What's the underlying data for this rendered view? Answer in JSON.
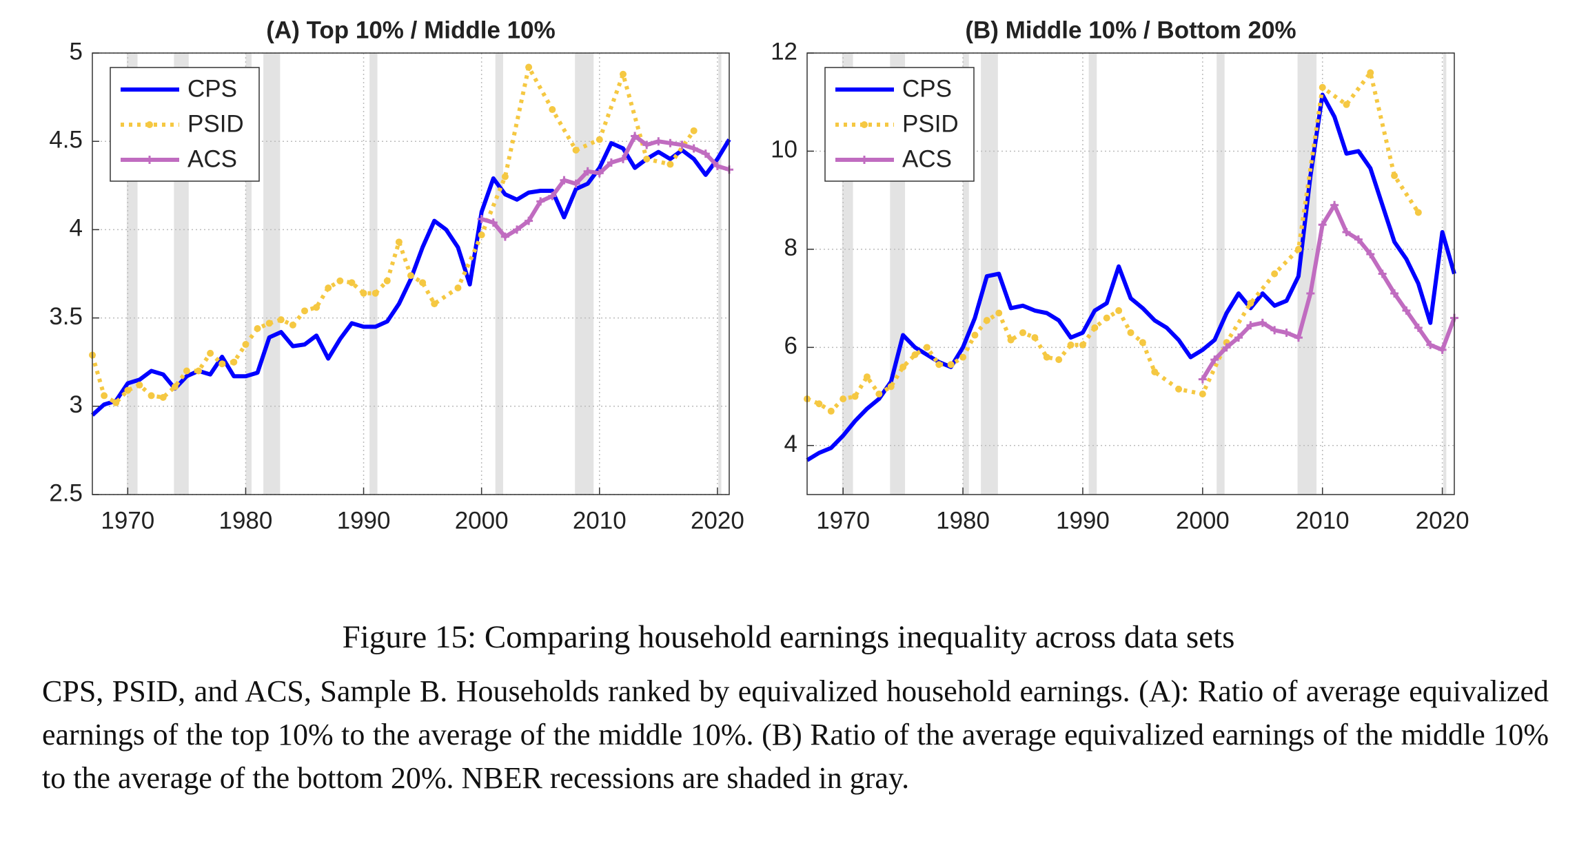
{
  "chart_data": [
    {
      "type": "line",
      "title": "(A) Top 10% / Middle 10%",
      "xlim": [
        1967,
        2021
      ],
      "xticks": [
        1970,
        1980,
        1990,
        2000,
        2010,
        2020
      ],
      "ylim": [
        2.5,
        5
      ],
      "yticks": [
        2.5,
        3,
        3.5,
        4,
        4.5,
        5
      ],
      "grid": true,
      "legend": "upper left",
      "recessions": [
        [
          1969.92,
          1970.83
        ],
        [
          1973.92,
          1975.17
        ],
        [
          1980.0,
          1980.5
        ],
        [
          1981.5,
          1982.92
        ],
        [
          1990.5,
          1991.17
        ],
        [
          2001.17,
          2001.83
        ],
        [
          2007.92,
          2009.5
        ],
        [
          2020.08,
          2020.33
        ]
      ],
      "series": [
        {
          "name": "CPS",
          "color": "#0000ff",
          "style": "solid",
          "x": [
            1967,
            1968,
            1969,
            1970,
            1971,
            1972,
            1973,
            1974,
            1975,
            1976,
            1977,
            1978,
            1979,
            1980,
            1981,
            1982,
            1983,
            1984,
            1985,
            1986,
            1987,
            1988,
            1989,
            1990,
            1991,
            1992,
            1993,
            1994,
            1995,
            1996,
            1997,
            1998,
            1999,
            2000,
            2001,
            2002,
            2003,
            2004,
            2005,
            2006,
            2007,
            2008,
            2009,
            2010,
            2011,
            2012,
            2013,
            2014,
            2015,
            2016,
            2017,
            2018,
            2019,
            2020,
            2021
          ],
          "values": [
            2.95,
            3.01,
            3.03,
            3.13,
            3.15,
            3.2,
            3.18,
            3.1,
            3.17,
            3.2,
            3.18,
            3.28,
            3.17,
            3.17,
            3.19,
            3.39,
            3.42,
            3.34,
            3.35,
            3.4,
            3.27,
            3.38,
            3.47,
            3.45,
            3.45,
            3.48,
            3.58,
            3.72,
            3.9,
            4.05,
            4.0,
            3.9,
            3.69,
            4.1,
            4.29,
            4.2,
            4.17,
            4.21,
            4.22,
            4.22,
            4.07,
            4.23,
            4.26,
            4.35,
            4.49,
            4.46,
            4.35,
            4.4,
            4.44,
            4.4,
            4.45,
            4.4,
            4.31,
            4.4,
            4.51
          ]
        },
        {
          "name": "PSID",
          "color": "#f5c842",
          "style": "dotted",
          "x": [
            1967,
            1968,
            1969,
            1970,
            1971,
            1972,
            1973,
            1974,
            1975,
            1976,
            1977,
            1978,
            1979,
            1980,
            1981,
            1982,
            1983,
            1984,
            1985,
            1986,
            1987,
            1988,
            1989,
            1990,
            1991,
            1992,
            1993,
            1994,
            1995,
            1996,
            1998,
            2000,
            2002,
            2004,
            2006,
            2008,
            2010,
            2012,
            2014,
            2016,
            2018
          ],
          "values": [
            3.29,
            3.06,
            3.02,
            3.09,
            3.12,
            3.06,
            3.05,
            3.11,
            3.2,
            3.2,
            3.3,
            3.24,
            3.25,
            3.35,
            3.44,
            3.47,
            3.49,
            3.46,
            3.54,
            3.56,
            3.67,
            3.71,
            3.7,
            3.64,
            3.64,
            3.71,
            3.93,
            3.74,
            3.7,
            3.58,
            3.67,
            3.97,
            4.3,
            4.92,
            4.68,
            4.45,
            4.51,
            4.88,
            4.4,
            4.37,
            4.56
          ]
        },
        {
          "name": "ACS",
          "color": "#c06cc0",
          "style": "plus",
          "x": [
            2000,
            2001,
            2002,
            2003,
            2004,
            2005,
            2006,
            2007,
            2008,
            2009,
            2010,
            2011,
            2012,
            2013,
            2014,
            2015,
            2016,
            2017,
            2018,
            2019,
            2020,
            2021
          ],
          "values": [
            4.06,
            4.04,
            3.96,
            4.0,
            4.05,
            4.16,
            4.19,
            4.28,
            4.26,
            4.33,
            4.32,
            4.38,
            4.4,
            4.53,
            4.48,
            4.5,
            4.49,
            4.48,
            4.46,
            4.43,
            4.36,
            4.34
          ]
        }
      ]
    },
    {
      "type": "line",
      "title": "(B) Middle 10% / Bottom 20%",
      "xlim": [
        1967,
        2021
      ],
      "xticks": [
        1970,
        1980,
        1990,
        2000,
        2010,
        2020
      ],
      "ylim": [
        3,
        12
      ],
      "yticks": [
        4,
        6,
        8,
        10,
        12
      ],
      "grid": true,
      "legend": "upper left",
      "recessions": [
        [
          1969.92,
          1970.83
        ],
        [
          1973.92,
          1975.17
        ],
        [
          1980.0,
          1980.5
        ],
        [
          1981.5,
          1982.92
        ],
        [
          1990.5,
          1991.17
        ],
        [
          2001.17,
          2001.83
        ],
        [
          2007.92,
          2009.5
        ],
        [
          2020.08,
          2020.33
        ]
      ],
      "series": [
        {
          "name": "CPS",
          "color": "#0000ff",
          "style": "solid",
          "x": [
            1967,
            1968,
            1969,
            1970,
            1971,
            1972,
            1973,
            1974,
            1975,
            1976,
            1977,
            1978,
            1979,
            1980,
            1981,
            1982,
            1983,
            1984,
            1985,
            1986,
            1987,
            1988,
            1989,
            1990,
            1991,
            1992,
            1993,
            1994,
            1995,
            1996,
            1997,
            1998,
            1999,
            2000,
            2001,
            2002,
            2003,
            2004,
            2005,
            2006,
            2007,
            2008,
            2009,
            2010,
            2011,
            2012,
            2013,
            2014,
            2015,
            2016,
            2017,
            2018,
            2019,
            2020,
            2021
          ],
          "values": [
            3.7,
            3.85,
            3.95,
            4.2,
            4.5,
            4.75,
            4.95,
            5.3,
            6.25,
            6.0,
            5.85,
            5.7,
            5.6,
            6.0,
            6.6,
            7.45,
            7.5,
            6.8,
            6.85,
            6.75,
            6.7,
            6.55,
            6.2,
            6.3,
            6.75,
            6.9,
            7.65,
            7.0,
            6.8,
            6.55,
            6.4,
            6.15,
            5.8,
            5.95,
            6.15,
            6.7,
            7.1,
            6.8,
            7.1,
            6.85,
            6.95,
            7.45,
            9.5,
            11.15,
            10.7,
            9.95,
            10.0,
            9.65,
            8.9,
            8.15,
            7.8,
            7.3,
            6.5,
            8.35,
            7.5
          ]
        },
        {
          "name": "PSID",
          "color": "#f5c842",
          "style": "dotted",
          "x": [
            1967,
            1968,
            1969,
            1970,
            1971,
            1972,
            1973,
            1974,
            1975,
            1976,
            1977,
            1978,
            1979,
            1980,
            1981,
            1982,
            1983,
            1984,
            1985,
            1986,
            1987,
            1988,
            1989,
            1990,
            1991,
            1992,
            1993,
            1994,
            1995,
            1996,
            1998,
            2000,
            2002,
            2004,
            2006,
            2008,
            2010,
            2012,
            2014,
            2016,
            2018
          ],
          "values": [
            4.95,
            4.85,
            4.7,
            4.95,
            5.0,
            5.4,
            5.05,
            5.2,
            5.6,
            5.85,
            6.0,
            5.65,
            5.65,
            5.8,
            6.25,
            6.55,
            6.7,
            6.15,
            6.3,
            6.2,
            5.8,
            5.75,
            6.05,
            6.05,
            6.4,
            6.6,
            6.75,
            6.3,
            6.1,
            5.5,
            5.15,
            5.05,
            6.1,
            6.9,
            7.5,
            8.0,
            11.3,
            10.95,
            11.6,
            9.5,
            8.75
          ]
        },
        {
          "name": "ACS",
          "color": "#c06cc0",
          "style": "plus",
          "x": [
            2000,
            2001,
            2002,
            2003,
            2004,
            2005,
            2006,
            2007,
            2008,
            2009,
            2010,
            2011,
            2012,
            2013,
            2014,
            2015,
            2016,
            2017,
            2018,
            2019,
            2020,
            2021
          ],
          "values": [
            5.35,
            5.75,
            6.0,
            6.2,
            6.45,
            6.5,
            6.35,
            6.3,
            6.2,
            7.1,
            8.5,
            8.9,
            8.35,
            8.2,
            7.9,
            7.5,
            7.1,
            6.75,
            6.4,
            6.05,
            5.95,
            6.6
          ]
        }
      ]
    }
  ],
  "caption": {
    "title": "Figure 15: Comparing household earnings inequality across data sets",
    "body": "CPS, PSID, and ACS, Sample B. Households ranked by equivalized household earnings. (A): Ratio of average equivalized earnings of the top 10% to the average of the middle 10%. (B) Ratio of the average equivalized earnings of the middle 10% to the average of the bottom 20%. NBER recessions are shaded in gray."
  }
}
